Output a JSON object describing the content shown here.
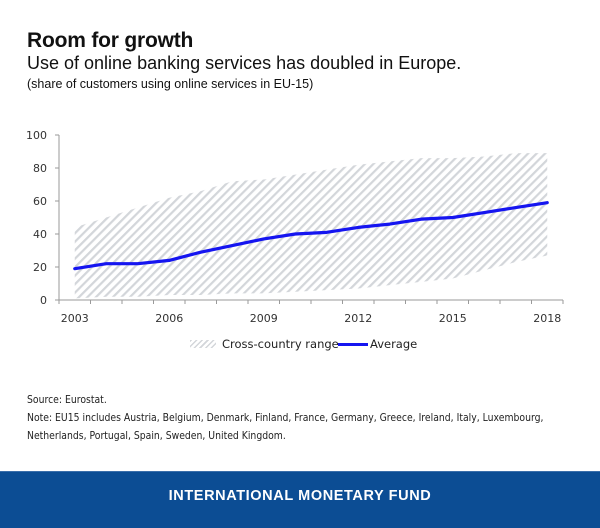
{
  "header": {
    "title": "Room for growth",
    "subtitle": "Use of online banking services has doubled in Europe.",
    "unit_note": "(share of customers using online services in EU-15)"
  },
  "chart_data": {
    "type": "line",
    "title": "Room for growth",
    "subtitle": "Use of online banking services has doubled in Europe.",
    "xlabel": "",
    "ylabel": "share of customers using online services in EU-15",
    "x": [
      2003,
      2004,
      2005,
      2006,
      2007,
      2008,
      2009,
      2010,
      2011,
      2012,
      2013,
      2014,
      2015,
      2016,
      2017,
      2018
    ],
    "x_tick_labels": [
      "2003",
      "2006",
      "2009",
      "2012",
      "2015",
      "2018"
    ],
    "y_tick_labels": [
      "0",
      "20",
      "40",
      "60",
      "80",
      "100"
    ],
    "ylim": [
      0,
      100
    ],
    "grid": false,
    "legend_position": "bottom-center",
    "series": [
      {
        "name": "Cross-country range",
        "kind": "band",
        "color": "#d3d6da",
        "lower": [
          1,
          2,
          2,
          3,
          3,
          4,
          4,
          5,
          6,
          7,
          9,
          11,
          13,
          18,
          23,
          27
        ],
        "upper": [
          44,
          50,
          56,
          62,
          66,
          72,
          73,
          76,
          79,
          82,
          84,
          86,
          86,
          87,
          89,
          89
        ]
      },
      {
        "name": "Average",
        "kind": "line",
        "color": "#1515f0",
        "values": [
          19,
          22,
          22,
          24,
          29,
          33,
          37,
          40,
          41,
          44,
          46,
          49,
          50,
          53,
          56,
          59
        ]
      }
    ]
  },
  "legend": {
    "range_label": "Cross-country range",
    "average_label": "Average"
  },
  "notes": {
    "source": "Source: Eurostat.",
    "note_line1": "Note: EU15 includes Austria, Belgium, Denmark, Finland, France, Germany, Greece, Ireland, Italy, Luxembourg,",
    "note_line2": "Netherlands, Portugal, Spain, Sweden, United Kingdom."
  },
  "banner": {
    "text": "INTERNATIONAL MONETARY FUND",
    "color": "#0c4d94"
  }
}
